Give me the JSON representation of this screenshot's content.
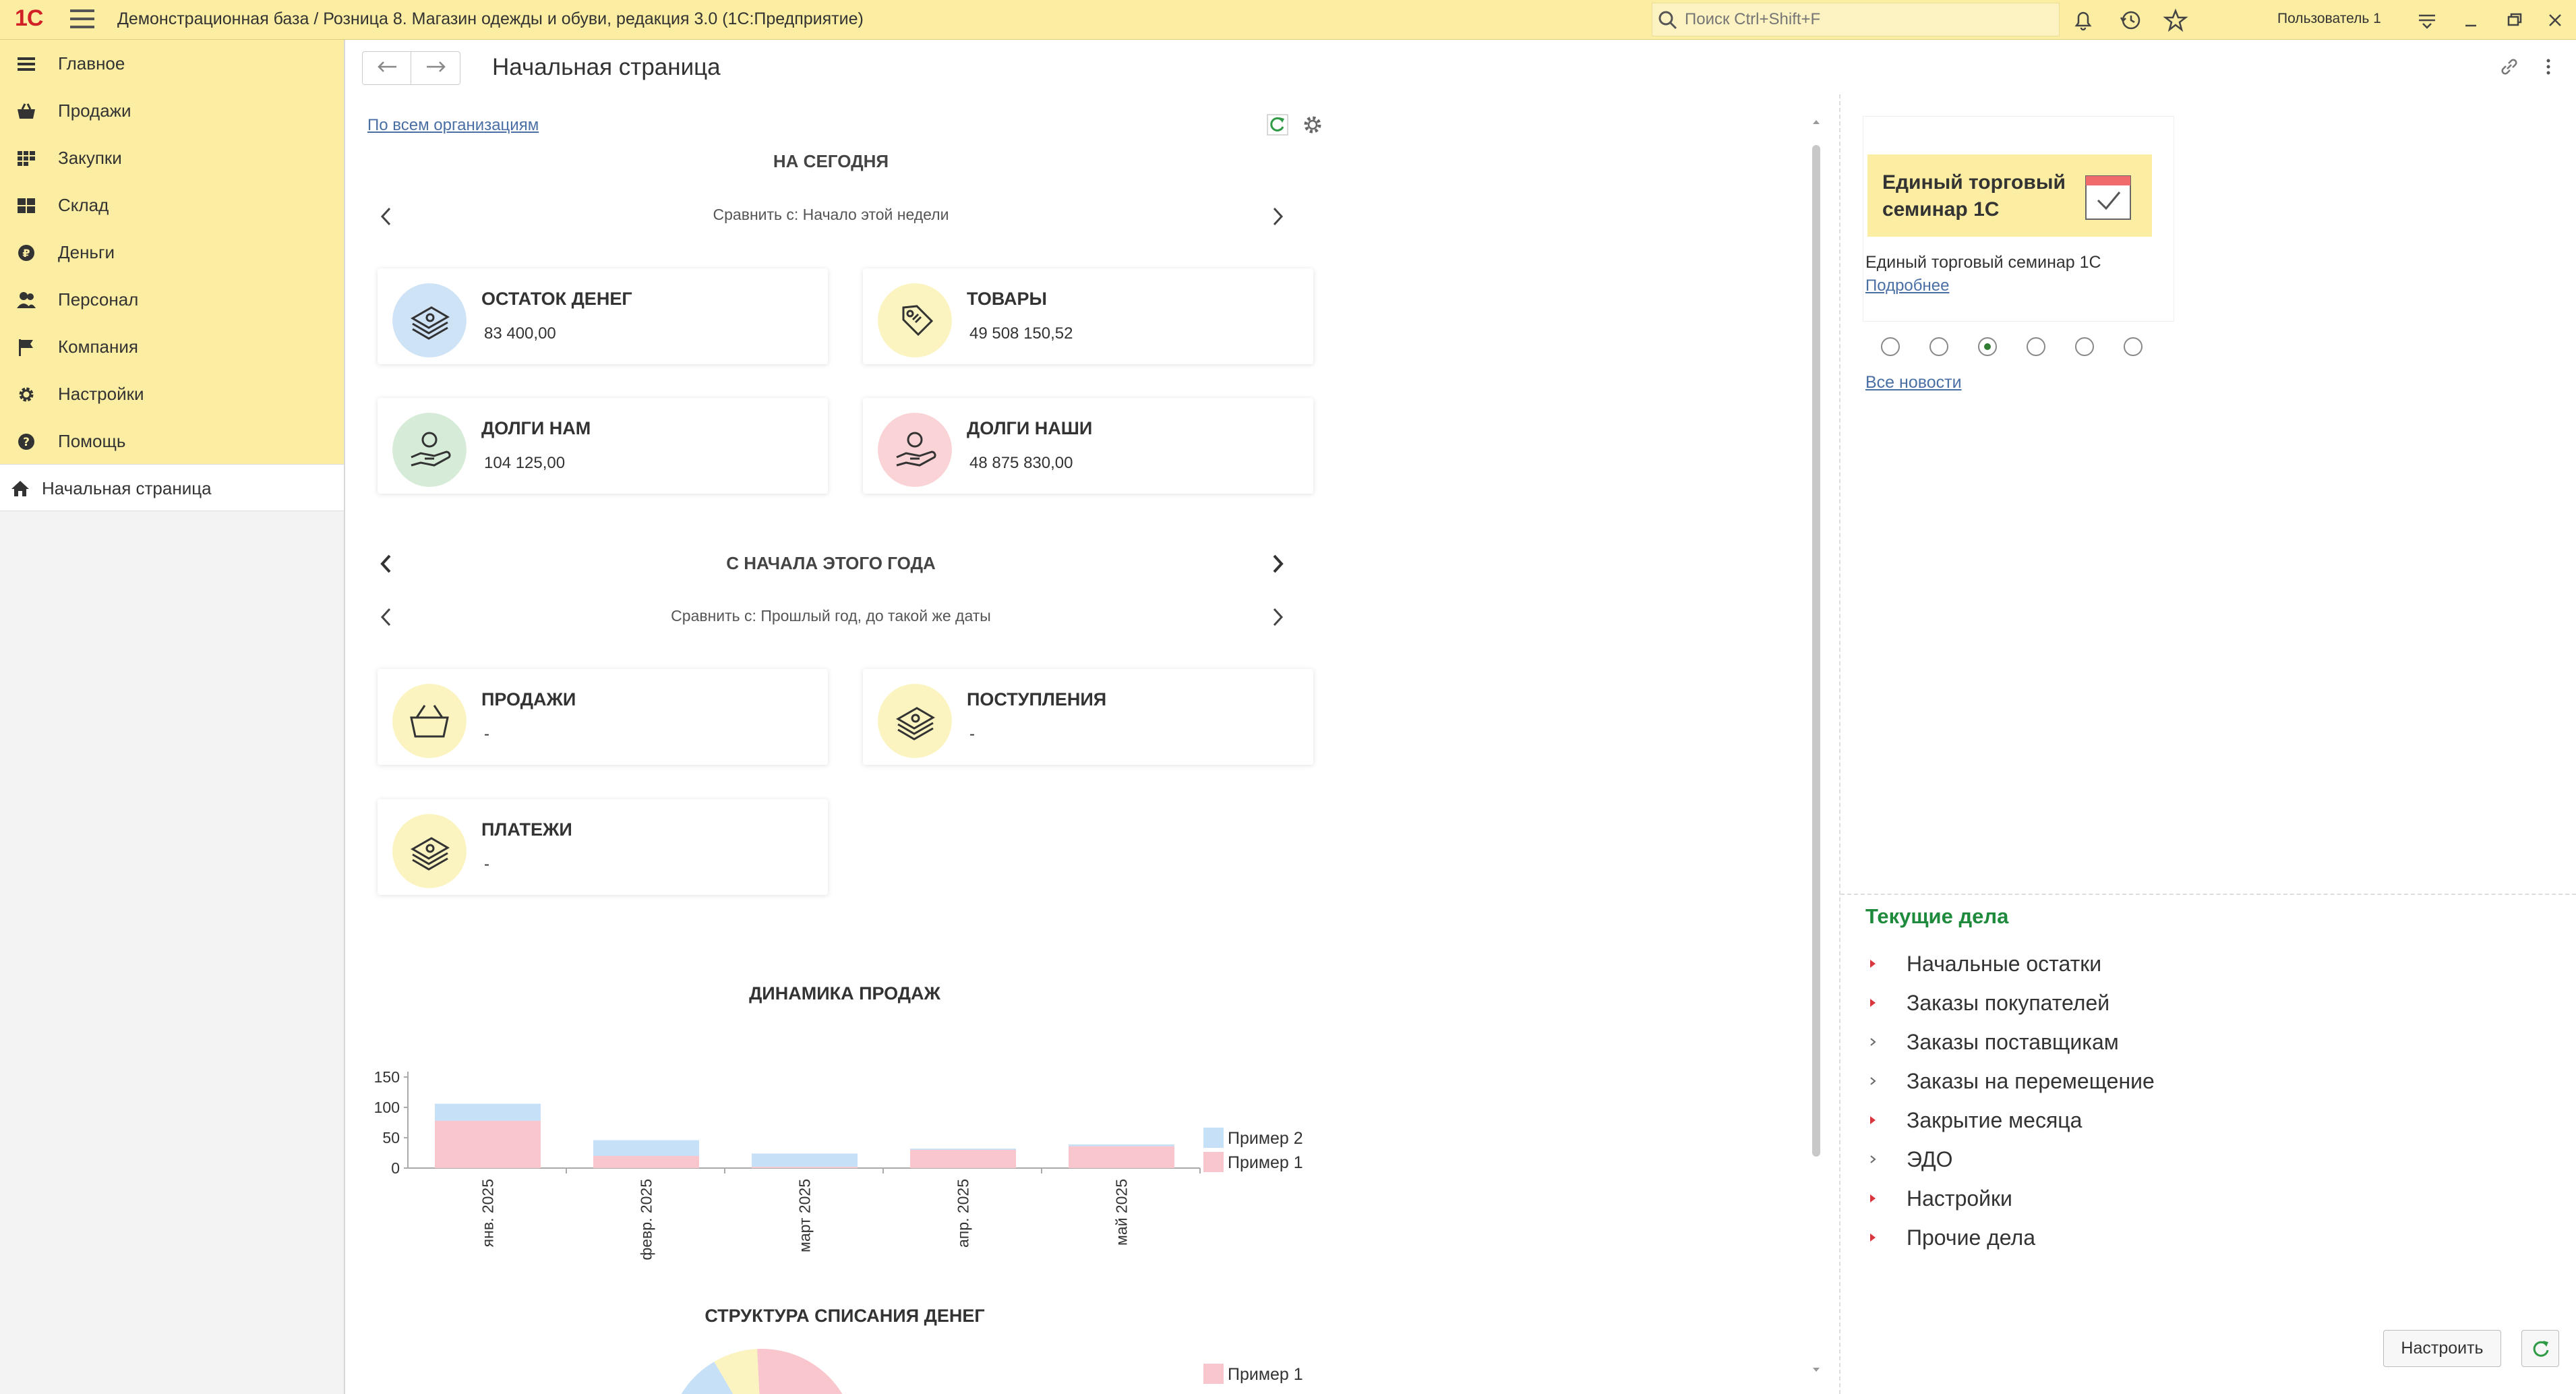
{
  "app": {
    "logo": "1С",
    "title": "Демонстрационная база / Розница 8. Магазин одежды и обуви, редакция 3.0  (1С:Предприятие)",
    "search_placeholder": "Поиск Ctrl+Shift+F",
    "user": "Пользователь 1"
  },
  "sidebar": {
    "items": [
      {
        "label": "Главное",
        "icon": "menu-lines-icon"
      },
      {
        "label": "Продажи",
        "icon": "basket-icon"
      },
      {
        "label": "Закупки",
        "icon": "grid-icon"
      },
      {
        "label": "Склад",
        "icon": "warehouse-grid-icon"
      },
      {
        "label": "Деньги",
        "icon": "ruble-icon"
      },
      {
        "label": "Персонал",
        "icon": "people-icon"
      },
      {
        "label": "Компания",
        "icon": "flag-icon"
      },
      {
        "label": "Настройки",
        "icon": "gear-icon"
      },
      {
        "label": "Помощь",
        "icon": "help-icon"
      }
    ],
    "home": {
      "label": "Начальная страница",
      "icon": "home-icon"
    }
  },
  "page": {
    "title": "Начальная страница",
    "org_link": "По всем организациям"
  },
  "today": {
    "title": "НА СЕГОДНЯ",
    "compare": "Сравнить с: Начало этой недели",
    "cards": [
      {
        "title": "ОСТАТОК ДЕНЕГ",
        "value": "83 400,00",
        "icon": "money-stack-icon",
        "color": "#cfe3f7"
      },
      {
        "title": "ТОВАРЫ",
        "value": "49 508 150,52",
        "icon": "price-tag-icon",
        "color": "#fbf4c0"
      },
      {
        "title": "ДОЛГИ НАМ",
        "value": "104 125,00",
        "icon": "hand-coin-icon",
        "color": "#d6ecd9"
      },
      {
        "title": "ДОЛГИ НАШИ",
        "value": "48 875 830,00",
        "icon": "hand-coin-icon",
        "color": "#f9d3d6"
      }
    ]
  },
  "year": {
    "title": "С НАЧАЛА ЭТОГО ГОДА",
    "compare": "Сравнить с: Прошлый год, до такой же даты",
    "cards": [
      {
        "title": "ПРОДАЖИ",
        "value": "-",
        "icon": "basket-icon",
        "color": "#fbf4c0"
      },
      {
        "title": "ПОСТУПЛЕНИЯ",
        "value": "-",
        "icon": "money-stack-icon",
        "color": "#fbf4c0"
      },
      {
        "title": "ПЛАТЕЖИ",
        "value": "-",
        "icon": "money-stack-icon",
        "color": "#fbf4c0"
      }
    ]
  },
  "chart_data": [
    {
      "type": "bar",
      "stacked": true,
      "title": "ДИНАМИКА ПРОДАЖ",
      "categories": [
        "янв. 2025",
        "февр. 2025",
        "март 2025",
        "апр. 2025",
        "май 2025"
      ],
      "series": [
        {
          "name": "Пример 1",
          "color": "#f8c6cc",
          "values": [
            78,
            20,
            2,
            30,
            36
          ]
        },
        {
          "name": "Пример 2",
          "color": "#c6e0f7",
          "values": [
            28,
            26,
            22,
            2,
            3
          ]
        }
      ],
      "y_ticks": [
        0,
        50,
        100,
        150
      ],
      "ylim": [
        0,
        150
      ],
      "legend": "right"
    },
    {
      "type": "pie",
      "title": "СТРУКТУРА СПИСАНИЯ ДЕНЕГ",
      "series": [
        {
          "name": "Пример 1",
          "color": "#f8c6cc"
        }
      ],
      "legend": "right"
    }
  ],
  "news": {
    "banner_title": "Единый торговый семинар 1С",
    "description": "Единый торговый семинар 1С",
    "more": "Подробнее",
    "dots": [
      false,
      false,
      true,
      false,
      false,
      false
    ],
    "all_news": "Все новости"
  },
  "tasks": {
    "title": "Текущие дела",
    "items": [
      {
        "label": "Начальные остатки",
        "marker": "red"
      },
      {
        "label": "Заказы покупателей",
        "marker": "red"
      },
      {
        "label": "Заказы поставщикам",
        "marker": "gray"
      },
      {
        "label": "Заказы на перемещение",
        "marker": "gray"
      },
      {
        "label": "Закрытие месяца",
        "marker": "red"
      },
      {
        "label": "ЭДО",
        "marker": "gray"
      },
      {
        "label": "Настройки",
        "marker": "red"
      },
      {
        "label": "Прочие дела",
        "marker": "red"
      }
    ],
    "config_button": "Настроить"
  }
}
